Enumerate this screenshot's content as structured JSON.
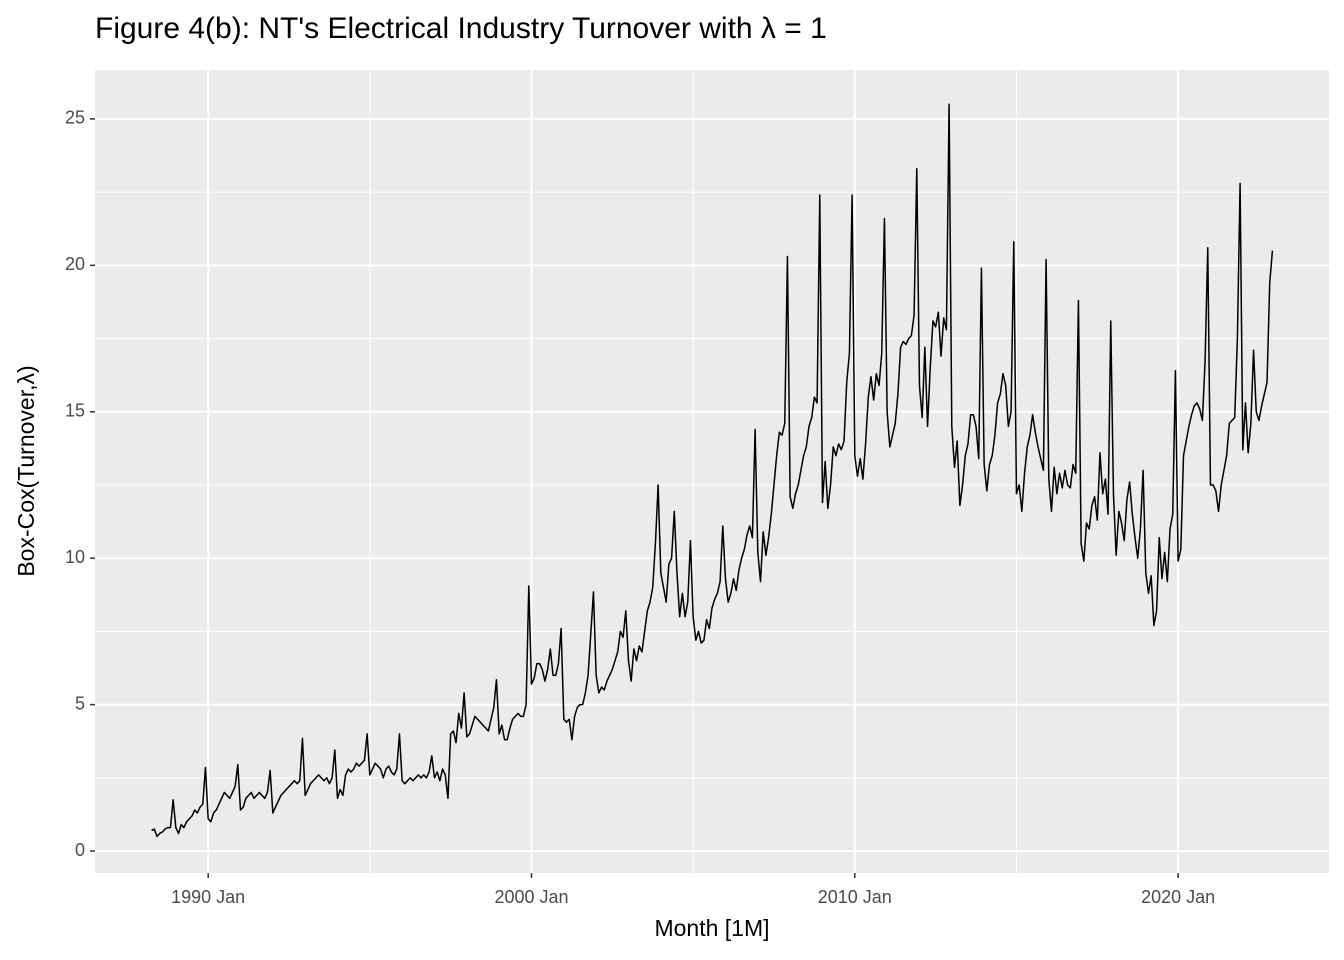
{
  "chart_data": {
    "type": "line",
    "title": "Figure 4(b): NT's Electrical Industry Turnover with λ = 1",
    "xlabel": "Month [1M]",
    "ylabel": "Box-Cox(Turnover,λ)",
    "color": "#000000",
    "grid": true,
    "xlim": [
      "1986 Jul",
      "2024 Sep"
    ],
    "xticks": [
      "1990 Jan",
      "2000 Jan",
      "2010 Jan",
      "2020 Jan"
    ],
    "ylim": [
      -0.75,
      26.67
    ],
    "yticks": [
      0,
      5,
      10,
      15,
      20,
      25
    ],
    "x": [
      "1988 Apr",
      "1988 May",
      "1988 Jun",
      "1988 Jul",
      "1988 Aug",
      "1988 Sep",
      "1988 Oct",
      "1988 Nov",
      "1988 Dec",
      "1989 Jan",
      "1989 Feb",
      "1989 Mar",
      "1989 Apr",
      "1989 May",
      "1989 Jun",
      "1989 Jul",
      "1989 Aug",
      "1989 Sep",
      "1989 Oct",
      "1989 Nov",
      "1989 Dec",
      "1990 Jan",
      "1990 Feb",
      "1990 Mar",
      "1990 Apr",
      "1990 May",
      "1990 Jun",
      "1990 Jul",
      "1990 Aug",
      "1990 Sep",
      "1990 Oct",
      "1990 Nov",
      "1990 Dec",
      "1991 Jan",
      "1991 Feb",
      "1991 Mar",
      "1991 Apr",
      "1991 May",
      "1991 Jun",
      "1991 Jul",
      "1991 Aug",
      "1991 Sep",
      "1991 Oct",
      "1991 Nov",
      "1991 Dec",
      "1992 Jan",
      "1992 Feb",
      "1992 Mar",
      "1992 Apr",
      "1992 May",
      "1992 Jun",
      "1992 Jul",
      "1992 Aug",
      "1992 Sep",
      "1992 Oct",
      "1992 Nov",
      "1992 Dec",
      "1993 Jan",
      "1993 Feb",
      "1993 Mar",
      "1993 Apr",
      "1993 May",
      "1993 Jun",
      "1993 Jul",
      "1993 Aug",
      "1993 Sep",
      "1993 Oct",
      "1993 Nov",
      "1993 Dec",
      "1994 Jan",
      "1994 Feb",
      "1994 Mar",
      "1994 Apr",
      "1994 May",
      "1994 Jun",
      "1994 Jul",
      "1994 Aug",
      "1994 Sep",
      "1994 Oct",
      "1994 Nov",
      "1994 Dec",
      "1995 Jan",
      "1995 Feb",
      "1995 Mar",
      "1995 Apr",
      "1995 May",
      "1995 Jun",
      "1995 Jul",
      "1995 Aug",
      "1995 Sep",
      "1995 Oct",
      "1995 Nov",
      "1995 Dec",
      "1996 Jan",
      "1996 Feb",
      "1996 Mar",
      "1996 Apr",
      "1996 May",
      "1996 Jun",
      "1996 Jul",
      "1996 Aug",
      "1996 Sep",
      "1996 Oct",
      "1996 Nov",
      "1996 Dec",
      "1997 Jan",
      "1997 Feb",
      "1997 Mar",
      "1997 Apr",
      "1997 May",
      "1997 Jun",
      "1997 Jul",
      "1997 Aug",
      "1997 Sep",
      "1997 Oct",
      "1997 Nov",
      "1997 Dec",
      "1998 Jan",
      "1998 Feb",
      "1998 Mar",
      "1998 Apr",
      "1998 May",
      "1998 Jun",
      "1998 Jul",
      "1998 Aug",
      "1998 Sep",
      "1998 Oct",
      "1998 Nov",
      "1998 Dec",
      "1999 Jan",
      "1999 Feb",
      "1999 Mar",
      "1999 Apr",
      "1999 May",
      "1999 Jun",
      "1999 Jul",
      "1999 Aug",
      "1999 Sep",
      "1999 Oct",
      "1999 Nov",
      "1999 Dec",
      "2000 Jan",
      "2000 Feb",
      "2000 Mar",
      "2000 Apr",
      "2000 May",
      "2000 Jun",
      "2000 Jul",
      "2000 Aug",
      "2000 Sep",
      "2000 Oct",
      "2000 Nov",
      "2000 Dec",
      "2001 Jan",
      "2001 Feb",
      "2001 Mar",
      "2001 Apr",
      "2001 May",
      "2001 Jun",
      "2001 Jul",
      "2001 Aug",
      "2001 Sep",
      "2001 Oct",
      "2001 Nov",
      "2001 Dec",
      "2002 Jan",
      "2002 Feb",
      "2002 Mar",
      "2002 Apr",
      "2002 May",
      "2002 Jun",
      "2002 Jul",
      "2002 Aug",
      "2002 Sep",
      "2002 Oct",
      "2002 Nov",
      "2002 Dec",
      "2003 Jan",
      "2003 Feb",
      "2003 Mar",
      "2003 Apr",
      "2003 May",
      "2003 Jun",
      "2003 Jul",
      "2003 Aug",
      "2003 Sep",
      "2003 Oct",
      "2003 Nov",
      "2003 Dec",
      "2004 Jan",
      "2004 Feb",
      "2004 Mar",
      "2004 Apr",
      "2004 May",
      "2004 Jun",
      "2004 Jul",
      "2004 Aug",
      "2004 Sep",
      "2004 Oct",
      "2004 Nov",
      "2004 Dec",
      "2005 Jan",
      "2005 Feb",
      "2005 Mar",
      "2005 Apr",
      "2005 May",
      "2005 Jun",
      "2005 Jul",
      "2005 Aug",
      "2005 Sep",
      "2005 Oct",
      "2005 Nov",
      "2005 Dec",
      "2006 Jan",
      "2006 Feb",
      "2006 Mar",
      "2006 Apr",
      "2006 May",
      "2006 Jun",
      "2006 Jul",
      "2006 Aug",
      "2006 Sep",
      "2006 Oct",
      "2006 Nov",
      "2006 Dec",
      "2007 Jan",
      "2007 Feb",
      "2007 Mar",
      "2007 Apr",
      "2007 May",
      "2007 Jun",
      "2007 Jul",
      "2007 Aug",
      "2007 Sep",
      "2007 Oct",
      "2007 Nov",
      "2007 Dec",
      "2008 Jan",
      "2008 Feb",
      "2008 Mar",
      "2008 Apr",
      "2008 May",
      "2008 Jun",
      "2008 Jul",
      "2008 Aug",
      "2008 Sep",
      "2008 Oct",
      "2008 Nov",
      "2008 Dec",
      "2009 Jan",
      "2009 Feb",
      "2009 Mar",
      "2009 Apr",
      "2009 May",
      "2009 Jun",
      "2009 Jul",
      "2009 Aug",
      "2009 Sep",
      "2009 Oct",
      "2009 Nov",
      "2009 Dec",
      "2010 Jan",
      "2010 Feb",
      "2010 Mar",
      "2010 Apr",
      "2010 May",
      "2010 Jun",
      "2010 Jul",
      "2010 Aug",
      "2010 Sep",
      "2010 Oct",
      "2010 Nov",
      "2010 Dec",
      "2011 Jan",
      "2011 Feb",
      "2011 Mar",
      "2011 Apr",
      "2011 May",
      "2011 Jun",
      "2011 Jul",
      "2011 Aug",
      "2011 Sep",
      "2011 Oct",
      "2011 Nov",
      "2011 Dec",
      "2012 Jan",
      "2012 Feb",
      "2012 Mar",
      "2012 Apr",
      "2012 May",
      "2012 Jun",
      "2012 Jul",
      "2012 Aug",
      "2012 Sep",
      "2012 Oct",
      "2012 Nov",
      "2012 Dec",
      "2013 Jan",
      "2013 Feb",
      "2013 Mar",
      "2013 Apr",
      "2013 May",
      "2013 Jun",
      "2013 Jul",
      "2013 Aug",
      "2013 Sep",
      "2013 Oct",
      "2013 Nov",
      "2013 Dec",
      "2014 Jan",
      "2014 Feb",
      "2014 Mar",
      "2014 Apr",
      "2014 May",
      "2014 Jun",
      "2014 Jul",
      "2014 Aug",
      "2014 Sep",
      "2014 Oct",
      "2014 Nov",
      "2014 Dec",
      "2015 Jan",
      "2015 Feb",
      "2015 Mar",
      "2015 Apr",
      "2015 May",
      "2015 Jun",
      "2015 Jul",
      "2015 Aug",
      "2015 Sep",
      "2015 Oct",
      "2015 Nov",
      "2015 Dec",
      "2016 Jan",
      "2016 Feb",
      "2016 Mar",
      "2016 Apr",
      "2016 May",
      "2016 Jun",
      "2016 Jul",
      "2016 Aug",
      "2016 Sep",
      "2016 Oct",
      "2016 Nov",
      "2016 Dec",
      "2017 Jan",
      "2017 Feb",
      "2017 Mar",
      "2017 Apr",
      "2017 May",
      "2017 Jun",
      "2017 Jul",
      "2017 Aug",
      "2017 Sep",
      "2017 Oct",
      "2017 Nov",
      "2017 Dec",
      "2018 Jan",
      "2018 Feb",
      "2018 Mar",
      "2018 Apr",
      "2018 May",
      "2018 Jun",
      "2018 Jul",
      "2018 Aug",
      "2018 Sep",
      "2018 Oct",
      "2018 Nov",
      "2018 Dec",
      "2019 Jan",
      "2019 Feb",
      "2019 Mar",
      "2019 Apr",
      "2019 May",
      "2019 Jun",
      "2019 Jul",
      "2019 Aug",
      "2019 Sep",
      "2019 Oct",
      "2019 Nov",
      "2019 Dec",
      "2020 Jan",
      "2020 Feb",
      "2020 Mar",
      "2020 Apr",
      "2020 May",
      "2020 Jun",
      "2020 Jul",
      "2020 Aug",
      "2020 Sep",
      "2020 Oct",
      "2020 Nov",
      "2020 Dec",
      "2021 Jan",
      "2021 Feb",
      "2021 Mar",
      "2021 Apr",
      "2021 May",
      "2021 Jun",
      "2021 Jul",
      "2021 Aug",
      "2021 Sep",
      "2021 Oct",
      "2021 Nov",
      "2021 Dec",
      "2022 Jan",
      "2022 Feb",
      "2022 Mar",
      "2022 Apr",
      "2022 May",
      "2022 Jun",
      "2022 Jul",
      "2022 Aug",
      "2022 Sep",
      "2022 Oct",
      "2022 Nov",
      "2022 Dec"
    ],
    "values": [
      0.7,
      0.75,
      0.5,
      0.6,
      0.65,
      0.75,
      0.8,
      0.8,
      1.75,
      0.8,
      0.6,
      0.9,
      0.8,
      1.0,
      1.1,
      1.2,
      1.4,
      1.3,
      1.5,
      1.6,
      2.85,
      1.1,
      1.0,
      1.3,
      1.4,
      1.6,
      1.8,
      2.0,
      1.9,
      1.8,
      2.0,
      2.2,
      2.95,
      1.4,
      1.5,
      1.8,
      1.9,
      2.0,
      1.8,
      1.9,
      2.0,
      1.9,
      1.8,
      2.0,
      2.75,
      1.3,
      1.5,
      1.7,
      1.9,
      2.0,
      2.1,
      2.2,
      2.3,
      2.4,
      2.3,
      2.4,
      3.85,
      1.9,
      2.1,
      2.3,
      2.4,
      2.5,
      2.6,
      2.5,
      2.4,
      2.5,
      2.3,
      2.5,
      3.45,
      1.8,
      2.1,
      1.9,
      2.6,
      2.8,
      2.7,
      2.8,
      3.0,
      2.9,
      3.0,
      3.1,
      4.0,
      2.6,
      2.8,
      3.0,
      2.9,
      2.8,
      2.5,
      2.8,
      2.9,
      2.7,
      2.6,
      2.8,
      4.0,
      2.4,
      2.3,
      2.4,
      2.5,
      2.4,
      2.5,
      2.6,
      2.5,
      2.6,
      2.5,
      2.7,
      3.25,
      2.5,
      2.7,
      2.4,
      2.8,
      2.6,
      1.8,
      4.0,
      4.1,
      3.7,
      4.7,
      4.2,
      5.4,
      3.9,
      4.0,
      4.3,
      4.6,
      4.5,
      4.4,
      4.3,
      4.2,
      4.1,
      4.5,
      4.9,
      5.85,
      4.0,
      4.3,
      3.8,
      3.8,
      4.2,
      4.5,
      4.6,
      4.7,
      4.6,
      4.6,
      5.0,
      9.05,
      5.7,
      5.9,
      6.4,
      6.4,
      6.2,
      5.8,
      6.2,
      6.9,
      6.0,
      6.0,
      6.4,
      7.6,
      4.5,
      4.4,
      4.5,
      3.8,
      4.6,
      4.9,
      5.0,
      5.0,
      5.4,
      6.0,
      7.4,
      8.85,
      6.0,
      5.4,
      5.6,
      5.5,
      5.8,
      6.0,
      6.2,
      6.5,
      6.8,
      7.5,
      7.3,
      8.2,
      6.5,
      5.8,
      6.9,
      6.5,
      7.0,
      6.8,
      7.5,
      8.2,
      8.5,
      9.0,
      10.5,
      12.5,
      9.5,
      9.0,
      8.5,
      9.8,
      10.0,
      11.6,
      9.5,
      8.0,
      8.8,
      8.0,
      8.5,
      10.6,
      8.0,
      7.2,
      7.5,
      7.1,
      7.2,
      7.9,
      7.6,
      8.3,
      8.6,
      8.8,
      9.2,
      11.1,
      9.3,
      8.5,
      8.8,
      9.3,
      8.9,
      9.6,
      10.0,
      10.3,
      10.8,
      11.1,
      10.7,
      14.4,
      10.2,
      9.2,
      10.9,
      10.1,
      10.7,
      11.5,
      12.5,
      13.5,
      14.3,
      14.2,
      14.6,
      20.3,
      12.1,
      11.7,
      12.2,
      12.5,
      13.0,
      13.5,
      13.8,
      14.5,
      14.8,
      15.5,
      15.3,
      22.4,
      11.9,
      13.3,
      11.7,
      12.5,
      13.8,
      13.5,
      13.9,
      13.7,
      14.0,
      16.0,
      17.0,
      22.4,
      13.5,
      12.8,
      13.4,
      12.7,
      13.9,
      15.5,
      16.2,
      15.4,
      16.3,
      15.9,
      17.0,
      21.6,
      15.0,
      13.8,
      14.2,
      14.6,
      15.6,
      17.2,
      17.4,
      17.3,
      17.5,
      17.6,
      18.3,
      23.3,
      15.9,
      14.8,
      17.2,
      14.5,
      16.5,
      18.1,
      17.9,
      18.4,
      16.9,
      18.2,
      17.8,
      25.5,
      14.5,
      13.1,
      14.0,
      11.8,
      12.5,
      13.5,
      13.9,
      14.9,
      14.9,
      14.5,
      13.4,
      19.9,
      13.2,
      12.3,
      13.2,
      13.5,
      14.2,
      15.3,
      15.6,
      16.3,
      15.9,
      14.5,
      15.0,
      20.8,
      12.2,
      12.5,
      11.6,
      12.9,
      13.8,
      14.2,
      14.9,
      14.3,
      13.8,
      13.4,
      13.0,
      20.2,
      12.7,
      11.6,
      13.1,
      12.2,
      12.9,
      12.4,
      13.0,
      12.5,
      12.4,
      13.2,
      12.9,
      18.8,
      10.5,
      9.9,
      11.2,
      11.0,
      11.8,
      12.1,
      11.3,
      13.6,
      12.2,
      12.7,
      11.5,
      18.1,
      12.2,
      10.1,
      11.6,
      11.2,
      10.6,
      12.0,
      12.6,
      11.5,
      10.7,
      10.0,
      11.0,
      13.0,
      9.5,
      8.8,
      9.4,
      7.7,
      8.2,
      10.7,
      9.3,
      10.2,
      9.2,
      11.0,
      11.5,
      16.4,
      9.9,
      10.3,
      13.5,
      14.0,
      14.5,
      14.9,
      15.2,
      15.3,
      15.1,
      14.7,
      16.7,
      20.6,
      12.5,
      12.5,
      12.3,
      11.6,
      12.5,
      13.0,
      13.5,
      14.6,
      14.7,
      14.8,
      17.5,
      22.8,
      13.7,
      15.3,
      13.6,
      14.6,
      17.1,
      15.0,
      14.7,
      15.2,
      15.6,
      16.0,
      19.4,
      20.5
    ]
  }
}
